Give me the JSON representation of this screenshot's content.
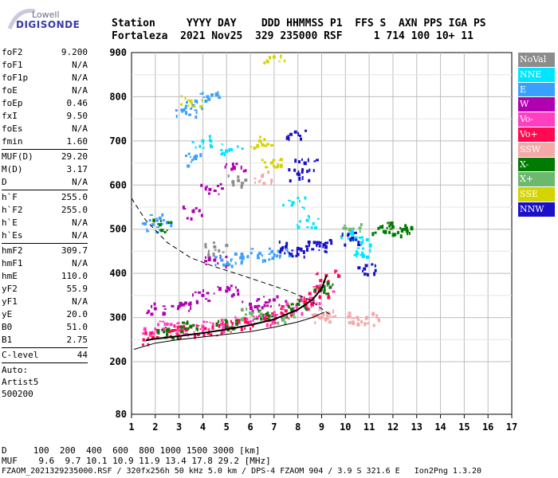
{
  "logo": {
    "line1": "Lowell",
    "line2": "DIGISONDE"
  },
  "header": {
    "line1": "Station     YYYY DAY    DDD HHMMSS P1  FFS S  AXN PPS IGA PS",
    "line2": "Fortaleza  2021 Nov25  329 235000 RSF     1 714 100 10+ 11"
  },
  "params": {
    "group1": [
      {
        "k": "foF2",
        "v": "9.200"
      },
      {
        "k": "foF1",
        "v": "N/A"
      },
      {
        "k": "foF1p",
        "v": "N/A"
      },
      {
        "k": "foE",
        "v": "N/A"
      },
      {
        "k": "foEp",
        "v": "0.46"
      },
      {
        "k": "fxI",
        "v": "9.50"
      },
      {
        "k": "foEs",
        "v": "N/A"
      },
      {
        "k": "fmin",
        "v": "1.60"
      }
    ],
    "group2": [
      {
        "k": "MUF(D)",
        "v": "29.20"
      },
      {
        "k": "M(D)",
        "v": "3.17"
      },
      {
        "k": "D",
        "v": "N/A"
      }
    ],
    "group3": [
      {
        "k": "h`F",
        "v": "255.0"
      },
      {
        "k": "h`F2",
        "v": "255.0"
      },
      {
        "k": "h`E",
        "v": "N/A"
      },
      {
        "k": "h`Es",
        "v": "N/A"
      }
    ],
    "group4": [
      {
        "k": "hmF2",
        "v": "309.7"
      },
      {
        "k": "hmF1",
        "v": "N/A"
      },
      {
        "k": "hmE",
        "v": "110.0"
      },
      {
        "k": "yF2",
        "v": "55.9"
      },
      {
        "k": "yF1",
        "v": "N/A"
      },
      {
        "k": "yE",
        "v": "20.0"
      },
      {
        "k": "B0",
        "v": "51.0"
      },
      {
        "k": "B1",
        "v": "2.75"
      }
    ],
    "group5": [
      {
        "k": "C-level",
        "v": "44"
      }
    ],
    "auto": {
      "l1": "Auto:",
      "l2": "Artist5",
      "l3": "500200"
    }
  },
  "legend": [
    {
      "label": "NoVal",
      "color": "#8c8c8c"
    },
    {
      "label": "NNE",
      "color": "#00e5ff"
    },
    {
      "label": "E",
      "color": "#3aa0ff"
    },
    {
      "label": "W",
      "color": "#b000b0"
    },
    {
      "label": "Vo-",
      "color": "#ff3fc0"
    },
    {
      "label": "Vo+",
      "color": "#ff0a50"
    },
    {
      "label": "SSW",
      "color": "#f5a8a8"
    },
    {
      "label": "X-",
      "color": "#007a00"
    },
    {
      "label": "X+",
      "color": "#6cb86c"
    },
    {
      "label": "SSE",
      "color": "#d4d400"
    },
    {
      "label": "NNW",
      "color": "#1a10c8"
    }
  ],
  "footer": {
    "line1": "D     100  200  400  600  800 1000 1500 3000 [km]",
    "line2": "MUF    9.6  9.7 10.1 10.9 11.9 13.4 17.8 29.2 [MHz]",
    "line3": "FZAOM_2021329235000.RSF / 320fx256h 50 kHz 5.0 km / DPS-4 FZAOM 904 / 3.9 S 321.6 E   Ion2Png 1.3.20"
  },
  "chart_data": {
    "type": "scatter",
    "xlim": [
      1,
      17
    ],
    "ylim": [
      80,
      900
    ],
    "x_ticks": [
      1,
      2,
      3,
      4,
      5,
      6,
      7,
      8,
      9,
      10,
      11,
      12,
      13,
      14,
      15,
      16,
      17
    ],
    "y_ticks": [
      80,
      200,
      300,
      400,
      500,
      600,
      700,
      800,
      900
    ],
    "grid": true,
    "legend_position": "right",
    "series": [
      {
        "mode": "Vo-",
        "points": [
          [
            1.8,
            265
          ],
          [
            2.5,
            285
          ],
          [
            3.2,
            275
          ],
          [
            4.0,
            280
          ],
          [
            4.8,
            285
          ],
          [
            5.5,
            290
          ],
          [
            6.3,
            300
          ],
          [
            7.0,
            305
          ],
          [
            7.8,
            320
          ],
          [
            8.5,
            340
          ],
          [
            9.0,
            370
          ]
        ]
      },
      {
        "mode": "Vo+",
        "points": [
          [
            1.9,
            255
          ],
          [
            2.6,
            268
          ],
          [
            3.3,
            272
          ],
          [
            4.1,
            275
          ],
          [
            5.0,
            280
          ],
          [
            5.8,
            290
          ],
          [
            6.6,
            298
          ],
          [
            7.5,
            315
          ],
          [
            8.3,
            335
          ],
          [
            8.9,
            360
          ],
          [
            9.2,
            395
          ]
        ]
      },
      {
        "mode": "W",
        "points": [
          [
            2.0,
            320
          ],
          [
            3.0,
            325
          ],
          [
            4.0,
            350
          ],
          [
            5.0,
            360
          ],
          [
            6.0,
            330
          ],
          [
            7.0,
            340
          ],
          [
            4.5,
            430
          ],
          [
            3.6,
            540
          ],
          [
            4.3,
            590
          ],
          [
            5.3,
            640
          ]
        ]
      },
      {
        "mode": "E",
        "points": [
          [
            3.2,
            770
          ],
          [
            3.6,
            780
          ],
          [
            4.2,
            800
          ],
          [
            4.8,
            430
          ],
          [
            5.6,
            435
          ],
          [
            6.4,
            445
          ],
          [
            7.2,
            450
          ],
          [
            1.9,
            510
          ],
          [
            2.2,
            525
          ],
          [
            3.7,
            660
          ]
        ]
      },
      {
        "mode": "NNE",
        "points": [
          [
            4.0,
            700
          ],
          [
            5.2,
            680
          ],
          [
            7.8,
            560
          ],
          [
            10.2,
            490
          ],
          [
            10.5,
            445
          ],
          [
            10.7,
            470
          ],
          [
            8.4,
            520
          ]
        ]
      },
      {
        "mode": "NNW",
        "points": [
          [
            7.5,
            460
          ],
          [
            8.1,
            455
          ],
          [
            8.7,
            470
          ],
          [
            9.1,
            465
          ],
          [
            10.3,
            480
          ],
          [
            10.8,
            410
          ],
          [
            8.3,
            650
          ],
          [
            8.0,
            625
          ],
          [
            7.9,
            720
          ]
        ]
      },
      {
        "mode": "X-",
        "points": [
          [
            2.2,
            510
          ],
          [
            2.5,
            270
          ],
          [
            3.5,
            280
          ],
          [
            5.0,
            290
          ],
          [
            6.5,
            305
          ],
          [
            8.0,
            330
          ],
          [
            9.1,
            370
          ],
          [
            11.5,
            505
          ],
          [
            12.0,
            505
          ],
          [
            12.5,
            500
          ]
        ]
      },
      {
        "mode": "X+",
        "points": [
          [
            7.4,
            300
          ],
          [
            6.0,
            310
          ],
          [
            10.2,
            500
          ]
        ]
      },
      {
        "mode": "SSE",
        "points": [
          [
            3.5,
            790
          ],
          [
            6.4,
            700
          ],
          [
            7.0,
            890
          ],
          [
            6.9,
            650
          ]
        ]
      },
      {
        "mode": "SSW",
        "points": [
          [
            9.0,
            300
          ],
          [
            9.3,
            310
          ],
          [
            10.5,
            300
          ],
          [
            10.9,
            300
          ],
          [
            6.5,
            620
          ]
        ]
      },
      {
        "mode": "NoVal",
        "points": [
          [
            4.5,
            460
          ],
          [
            5.5,
            610
          ]
        ]
      }
    ],
    "profile_trace": [
      [
        1.6,
        248
      ],
      [
        2.0,
        252
      ],
      [
        3.0,
        258
      ],
      [
        4.0,
        265
      ],
      [
        5.0,
        273
      ],
      [
        6.0,
        283
      ],
      [
        7.0,
        296
      ],
      [
        8.0,
        318
      ],
      [
        8.6,
        340
      ],
      [
        9.0,
        365
      ],
      [
        9.2,
        395
      ]
    ],
    "profile_solid_lower": [
      [
        1.1,
        228
      ],
      [
        2.0,
        242
      ],
      [
        3.0,
        250
      ],
      [
        4.0,
        256
      ],
      [
        5.0,
        262
      ],
      [
        6.0,
        268
      ],
      [
        7.0,
        278
      ],
      [
        8.0,
        290
      ],
      [
        8.6,
        300
      ],
      [
        9.1,
        312
      ]
    ],
    "profile_dashed": [
      [
        1.0,
        570
      ],
      [
        1.6,
        520
      ],
      [
        2.5,
        470
      ],
      [
        3.5,
        435
      ],
      [
        4.5,
        415
      ],
      [
        5.5,
        398
      ],
      [
        6.5,
        380
      ],
      [
        7.5,
        362
      ],
      [
        8.5,
        340
      ],
      [
        9.0,
        320
      ],
      [
        9.4,
        305
      ]
    ]
  }
}
